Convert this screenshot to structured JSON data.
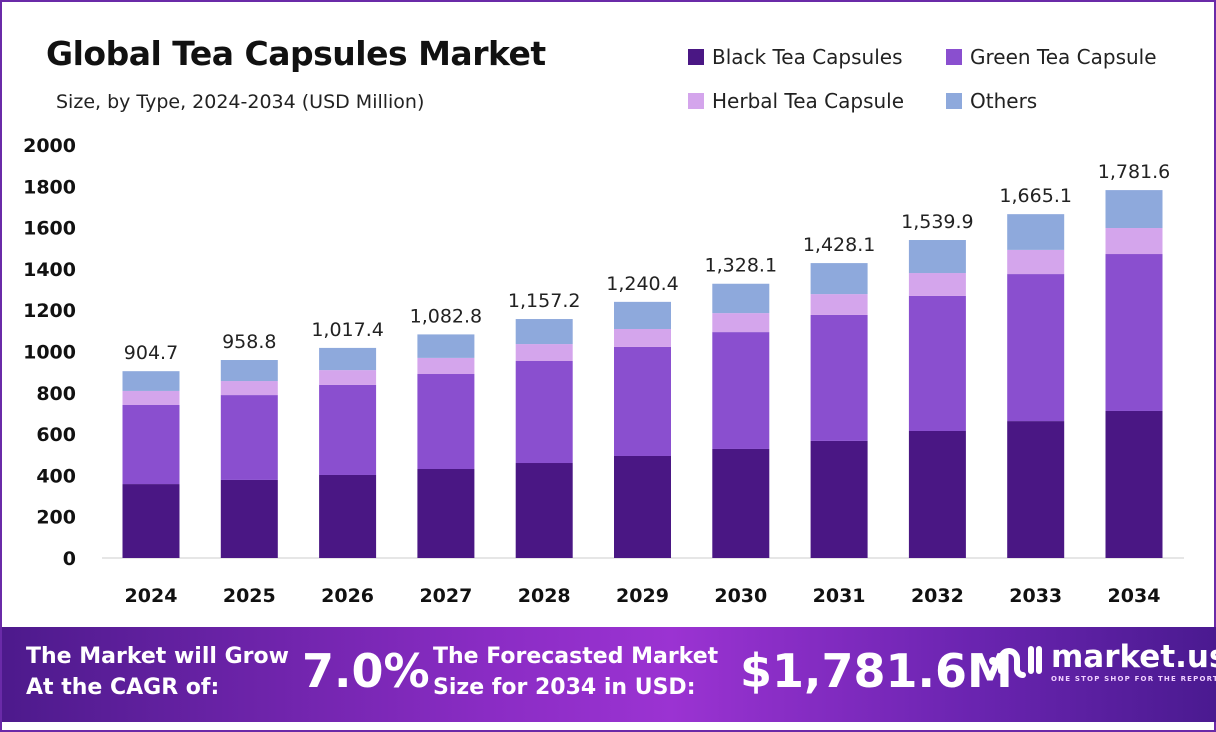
{
  "chart_data": {
    "type": "bar",
    "stacked": true,
    "title": "Global Tea Capsules Market",
    "subtitle": "Size, by Type, 2024-2034 (USD Million)",
    "categories": [
      "2024",
      "2025",
      "2026",
      "2027",
      "2028",
      "2029",
      "2030",
      "2031",
      "2032",
      "2033",
      "2034"
    ],
    "series": [
      {
        "name": "Black Tea Capsules",
        "color": "#4a1784",
        "values": [
          358,
          378,
          402,
          431,
          460,
          494,
          528,
          567,
          615,
          663,
          712
        ]
      },
      {
        "name": "Green Tea Capsule",
        "color": "#8a4fcf",
        "values": [
          383,
          411,
          436,
          460,
          494,
          528,
          566,
          610,
          654,
          712,
          760
        ]
      },
      {
        "name": "Herbal Tea Capsule",
        "color": "#d4a5ec",
        "values": [
          68,
          68,
          72,
          78,
          82,
          87,
          92,
          101,
          111,
          117,
          126
        ]
      },
      {
        "name": "Others",
        "color": "#8ea9dc",
        "values": [
          95.7,
          101.8,
          107.4,
          113.8,
          121.2,
          131.4,
          142.1,
          150.1,
          159.9,
          173.1,
          183.6
        ]
      }
    ],
    "totals": [
      "904.7",
      "958.8",
      "1,017.4",
      "1,082.8",
      "1,157.2",
      "1,240.4",
      "1,328.1",
      "1,428.1",
      "1,539.9",
      "1,665.1",
      "1,781.6"
    ],
    "yticks": [
      "0",
      "200",
      "400",
      "600",
      "800",
      "1000",
      "1200",
      "1400",
      "1600",
      "1800",
      "2000"
    ],
    "ylim": [
      0,
      2000
    ],
    "grid": false,
    "legend": "top-right"
  },
  "banner": {
    "cagr_label_1": "The Market will Grow",
    "cagr_label_2": "At the CAGR of:",
    "cagr_value": "7.0%",
    "forecast_label_1": "The Forecasted Market",
    "forecast_label_2": "Size for 2034 in USD:",
    "forecast_value": "$1,781.6M",
    "logo_text": "market.us",
    "logo_tagline": "ONE STOP SHOP FOR THE REPORTS"
  }
}
